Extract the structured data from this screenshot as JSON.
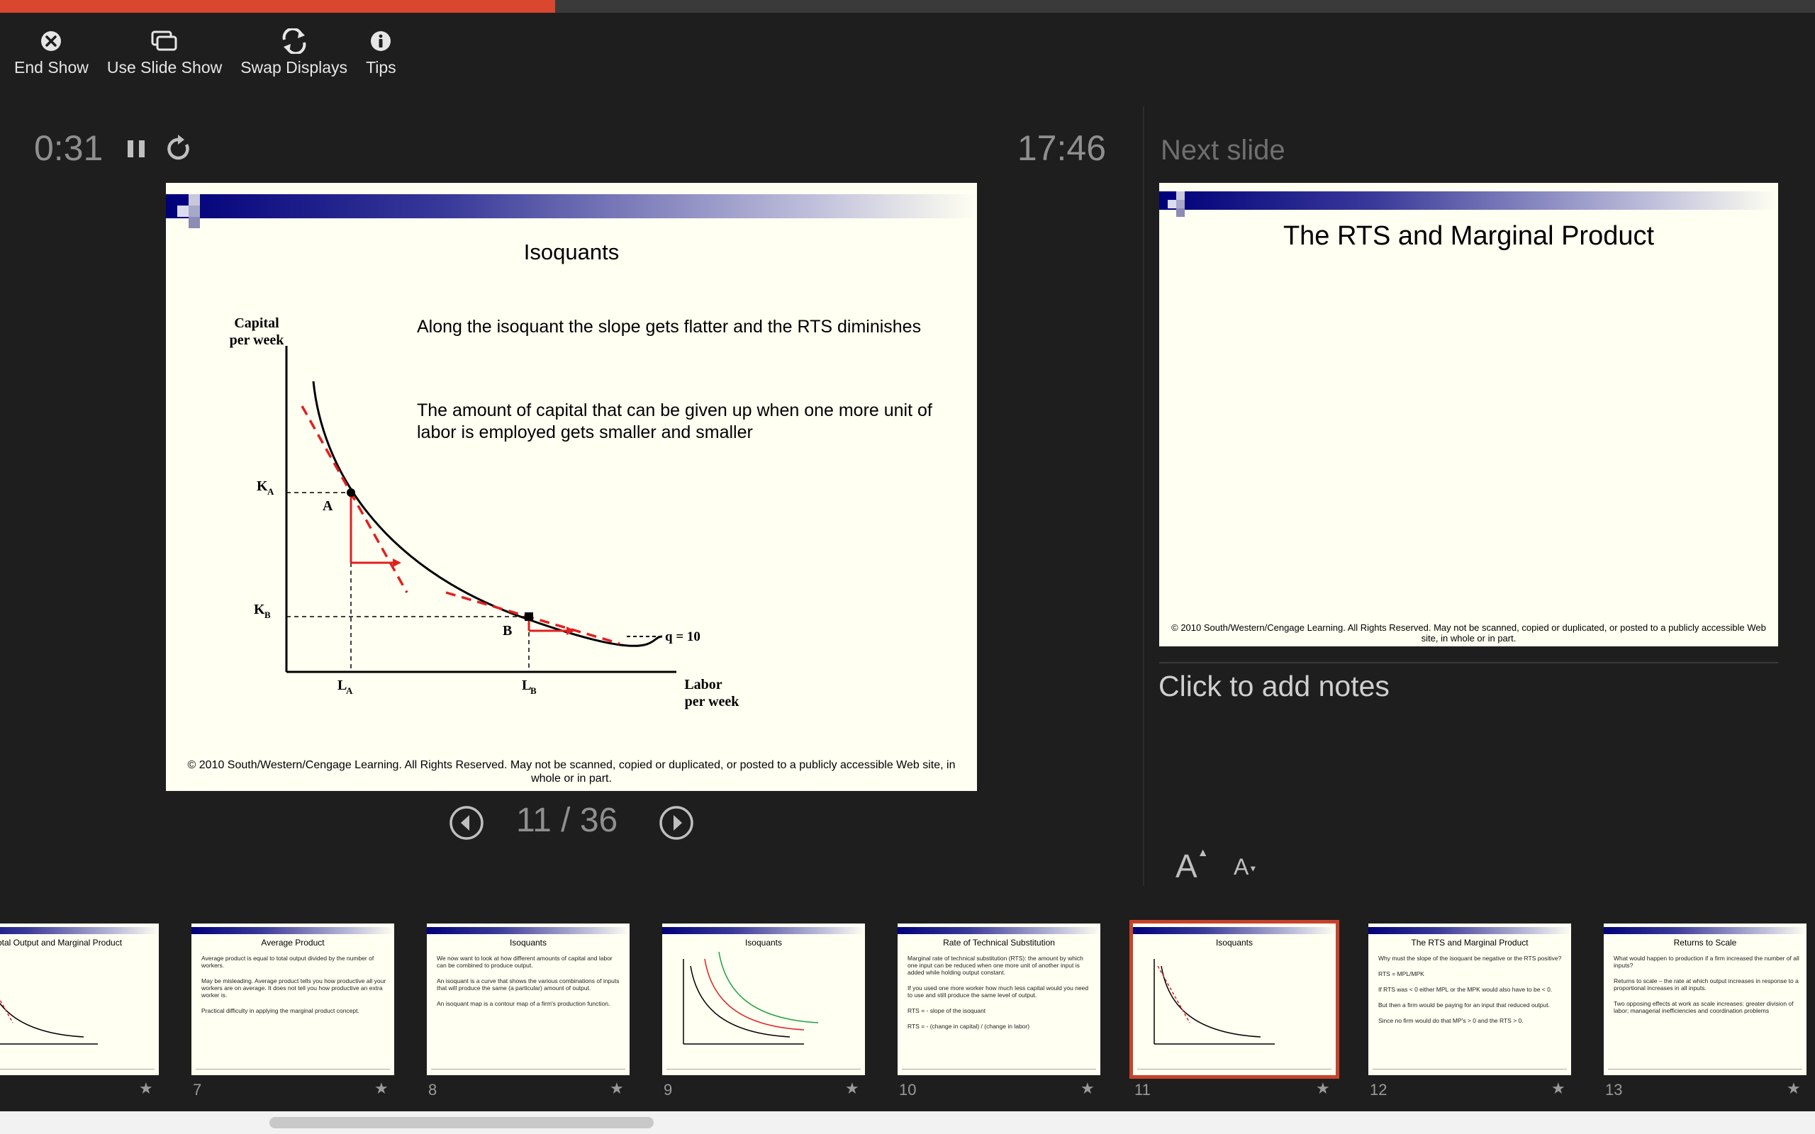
{
  "presentation": {
    "progress_fraction": 0.306,
    "accent_color": "#d9472e"
  },
  "toolbar": {
    "end_show": "End Show",
    "use_slide_show": "Use Slide Show",
    "swap_displays": "Swap Displays",
    "tips": "Tips"
  },
  "timer": {
    "elapsed": "0:31",
    "clock": "17:46"
  },
  "current_slide": {
    "title": "Isoquants",
    "bullet1": "Along the isoquant the slope gets flatter and the RTS diminishes",
    "bullet2": "The amount of capital that can be given up when one more unit of labor is employed gets smaller and smaller",
    "graph": {
      "y_axis_1": "Capital",
      "y_axis_2": "per week",
      "x_axis_1": "Labor",
      "x_axis_2": "per week",
      "ka": "K",
      "ka_sub": "A",
      "kb": "K",
      "kb_sub": "B",
      "la": "L",
      "la_sub": "A",
      "lb": "L",
      "lb_sub": "B",
      "point_a": "A",
      "point_b": "B",
      "curve_label": "q = 10"
    },
    "copyright": "© 2010 South/Western/Cengage Learning. All Rights Reserved. May not be scanned, copied or duplicated, or posted to a publicly accessible Web site, in whole or in part."
  },
  "navigation": {
    "counter": "11 / 36"
  },
  "next_slide": {
    "label": "Next slide",
    "title": "The RTS and Marginal Product",
    "copyright": "© 2010 South/Western/Cengage Learning. All Rights Reserved. May not be scanned, copied or duplicated, or posted to a publicly accessible Web site, in whole or in part."
  },
  "notes": {
    "placeholder": "Click to add notes"
  },
  "font_controls": {
    "increase": "A",
    "decrease": "A"
  },
  "thumbnails": [
    {
      "number": "",
      "title": "Total Output and Marginal Product",
      "bullets": []
    },
    {
      "number": "7",
      "title": "Average Product",
      "bullets": [
        "Average product is equal to total output divided by the number of workers.",
        "May be misleading. Average product tells you how productive all your workers are on average. It does not tell you how productive an extra worker is.",
        "Practical difficulty in applying the marginal product concept."
      ]
    },
    {
      "number": "8",
      "title": "Isoquants",
      "bullets": [
        "We now want to look at how different amounts of capital and labor can be combined to produce output.",
        "An isoquant is a curve that shows the various combinations of inputs that will produce the same (a particular) amount of output.",
        "An isoquant map is a contour map of a firm's production function."
      ]
    },
    {
      "number": "9",
      "title": "Isoquants",
      "bullets": []
    },
    {
      "number": "10",
      "title": "Rate of Technical Substitution",
      "bullets": [
        "Marginal rate of technical substitution (RTS): the amount by which one input can be reduced when one more unit of another input is added while holding output constant.",
        "If you used one more worker how much less capital would you need to use and still produce the same level of output.",
        "RTS = - slope of the isoquant",
        "RTS = - (change in capital) / (change in labor)"
      ]
    },
    {
      "number": "11",
      "title": "Isoquants",
      "bullets": []
    },
    {
      "number": "12",
      "title": "The RTS and Marginal Product",
      "bullets": [
        "Why must the slope of the isoquant be negative or the RTS positive?",
        "RTS = MPL/MPK",
        "If RTS was < 0 either MPL or the MPK would also have to be < 0.",
        "But then a firm would be paying for an input that reduced output.",
        "Since no firm would do that MP's > 0 and the RTS > 0."
      ]
    },
    {
      "number": "13",
      "title": "Returns to Scale",
      "bullets": [
        "What would happen to production if a firm increased the number of all inputs?",
        "Returns to scale – the rate at which output increases in response to a proportional increases in all inputs.",
        "Two opposing effects at work as scale increases: greater division of labor; managerial inefficiencies and coordination problems"
      ]
    }
  ]
}
